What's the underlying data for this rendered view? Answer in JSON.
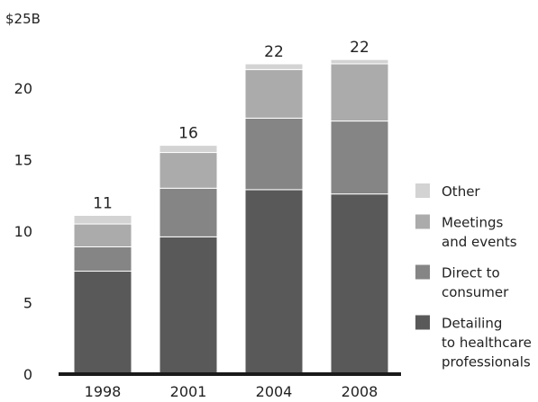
{
  "chart_data": {
    "type": "bar",
    "stacked": true,
    "title": "",
    "ylabel": "$25B",
    "ylim": [
      0,
      25
    ],
    "yticks": [
      "0",
      "5",
      "10",
      "15",
      "20"
    ],
    "categories": [
      "1998",
      "2001",
      "2004",
      "2008"
    ],
    "totals": [
      "11",
      "16",
      "22",
      "22"
    ],
    "grid": false,
    "legend_position": "right",
    "series": [
      {
        "name": "Detailing to healthcare professionals",
        "legend_lines": [
          "Detailing",
          "to healthcare",
          "professionals"
        ],
        "values": [
          7.2,
          9.6,
          12.9,
          12.6
        ],
        "color": "#595959"
      },
      {
        "name": "Direct to consumer",
        "legend_lines": [
          "Direct to",
          "consumer"
        ],
        "values": [
          1.7,
          3.4,
          5.0,
          5.1
        ],
        "color": "#858585"
      },
      {
        "name": "Meetings and events",
        "legend_lines": [
          "Meetings",
          "and events"
        ],
        "values": [
          1.6,
          2.5,
          3.4,
          4.0
        ],
        "color": "#ababab"
      },
      {
        "name": "Other",
        "legend_lines": [
          "Other"
        ],
        "values": [
          0.6,
          0.5,
          0.4,
          0.3
        ],
        "color": "#d3d3d3"
      }
    ]
  }
}
